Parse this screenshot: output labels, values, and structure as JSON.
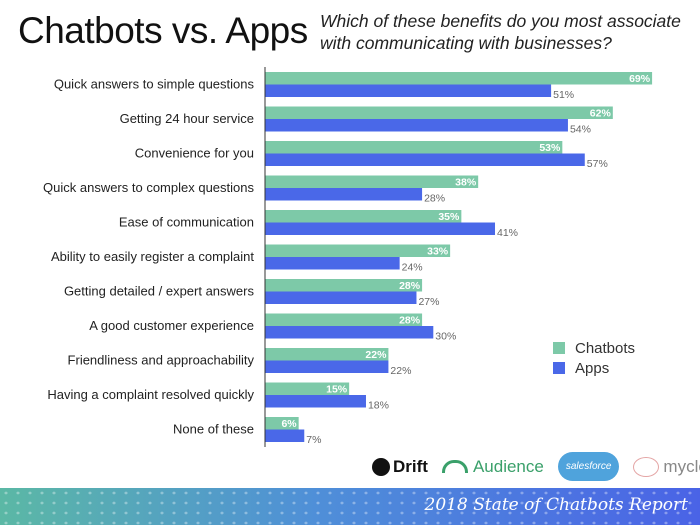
{
  "chart_data": {
    "type": "bar",
    "orientation": "horizontal",
    "title": "Chatbots vs. Apps",
    "subtitle": "Which of these benefits do you most associate with communicating with businesses?",
    "categories": [
      "Quick answers to simple questions",
      "Getting 24 hour service",
      "Convenience for you",
      "Quick answers to complex questions",
      "Ease of communication",
      "Ability to easily register a complaint",
      "Getting detailed / expert answers",
      "A good customer experience",
      "Friendliness and approachability",
      "Having a complaint resolved quickly",
      "None of these"
    ],
    "series": [
      {
        "name": "Chatbots",
        "color": "#7dc9a8",
        "values": [
          69,
          62,
          53,
          38,
          35,
          33,
          28,
          28,
          22,
          15,
          6
        ]
      },
      {
        "name": "Apps",
        "color": "#4a68e8",
        "values": [
          51,
          54,
          57,
          28,
          41,
          24,
          27,
          30,
          22,
          18,
          7
        ]
      }
    ],
    "value_suffix": "%",
    "grid": false,
    "legend_position": "right"
  },
  "logos": [
    "Drift",
    "Audience",
    "salesforce",
    "myclever"
  ],
  "footer": "2018 State of Chatbots Report"
}
